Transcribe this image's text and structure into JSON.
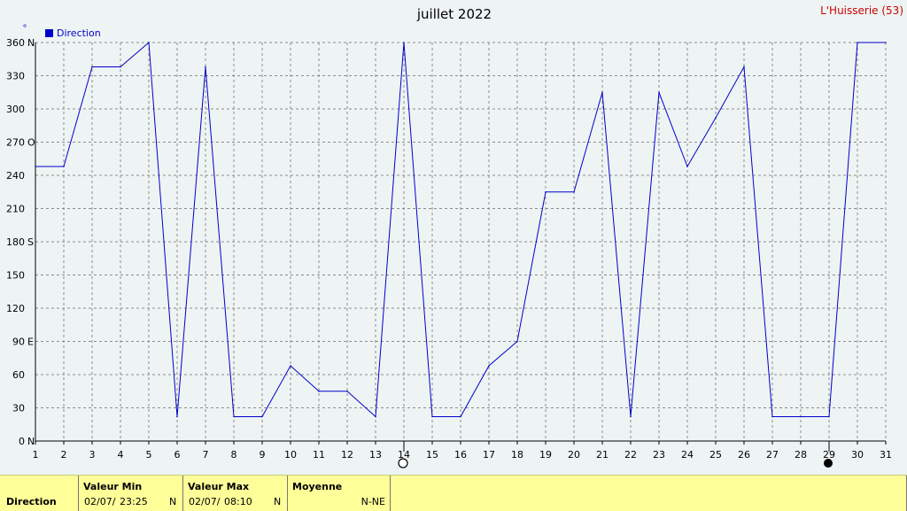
{
  "title": "juillet 2022",
  "station": "L'Huisserie (53)",
  "unit_symbol": "°",
  "colors": {
    "line": "#0000cc",
    "title": "#000000",
    "station": "#cc0000",
    "grid": "#8c8c8c",
    "axis": "#000000"
  },
  "chart_data": {
    "type": "line",
    "title": "juillet 2022",
    "xlabel": "",
    "ylabel": "°",
    "xlim": [
      1,
      31
    ],
    "ylim": [
      0,
      360
    ],
    "grid": true,
    "legend_position": "top-left",
    "x_ticks": [
      "1",
      "2",
      "3",
      "4",
      "5",
      "6",
      "7",
      "8",
      "9",
      "10",
      "11",
      "12",
      "13",
      "14",
      "15",
      "16",
      "17",
      "18",
      "19",
      "20",
      "21",
      "22",
      "23",
      "24",
      "25",
      "26",
      "27",
      "28",
      "29",
      "30",
      "31"
    ],
    "y_ticks": [
      {
        "value": 0,
        "label": "0",
        "dir": "N"
      },
      {
        "value": 30,
        "label": "30",
        "dir": ""
      },
      {
        "value": 60,
        "label": "60",
        "dir": ""
      },
      {
        "value": 90,
        "label": "90",
        "dir": "E"
      },
      {
        "value": 120,
        "label": "120",
        "dir": ""
      },
      {
        "value": 150,
        "label": "150",
        "dir": ""
      },
      {
        "value": 180,
        "label": "180",
        "dir": "S"
      },
      {
        "value": 210,
        "label": "210",
        "dir": ""
      },
      {
        "value": 240,
        "label": "240",
        "dir": ""
      },
      {
        "value": 270,
        "label": "270",
        "dir": "O"
      },
      {
        "value": 300,
        "label": "300",
        "dir": ""
      },
      {
        "value": 330,
        "label": "330",
        "dir": ""
      },
      {
        "value": 360,
        "label": "360",
        "dir": "N"
      }
    ],
    "series": [
      {
        "name": "Direction",
        "x": [
          1,
          2,
          3,
          4,
          5,
          6,
          7,
          8,
          9,
          10,
          11,
          12,
          13,
          14,
          15,
          16,
          17,
          18,
          19,
          20,
          21,
          22,
          23,
          24,
          25,
          26,
          27,
          28,
          29,
          30,
          31
        ],
        "values": [
          248,
          248,
          338,
          338,
          360,
          22,
          338,
          22,
          22,
          68,
          45,
          45,
          22,
          360,
          22,
          22,
          68,
          90,
          225,
          225,
          315,
          22,
          315,
          248,
          292,
          338,
          22,
          22,
          22,
          360,
          360
        ]
      }
    ],
    "moon_phases": [
      {
        "day": 14,
        "phase": "full"
      },
      {
        "day": 29,
        "phase": "new"
      }
    ]
  },
  "summary": {
    "row_label": "Direction",
    "min": {
      "header": "Valeur Min",
      "date": "02/07/",
      "time": "23:25",
      "value": "N"
    },
    "max": {
      "header": "Valeur Max",
      "date": "02/07/",
      "time": "08:10",
      "value": "N"
    },
    "avg": {
      "header": "Moyenne",
      "value": "N-NE"
    }
  }
}
